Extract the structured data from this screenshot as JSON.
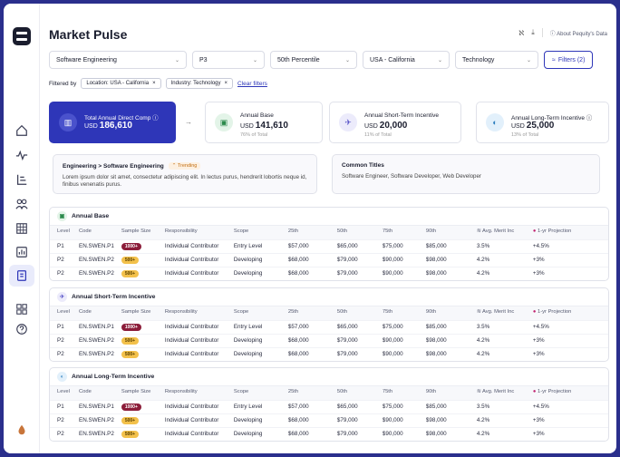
{
  "app": {
    "title": "Market Pulse"
  },
  "header": {
    "about_label": "About Pequity's Data"
  },
  "colors": {
    "accent": "#2e36b8",
    "frame": "#2a2f8c"
  },
  "filters": {
    "job": "Software Engineering",
    "level": "P3",
    "percentile": "50th Percentile",
    "location": "USA - California",
    "industry": "Technology",
    "button": "Filters (2)"
  },
  "filtered_by": {
    "label": "Filtered by",
    "chips": [
      "Location: USA - California",
      "Industry: Technology"
    ],
    "clear": "Clear filters"
  },
  "kpis": [
    {
      "label": "Total Annual Direct Comp",
      "currency": "USD",
      "value": "186,610",
      "pct": ""
    },
    {
      "label": "Annual Base",
      "currency": "USD",
      "value": "141,610",
      "pct": "76% of Total"
    },
    {
      "label": "Annual Short-Term Incentive",
      "currency": "USD",
      "value": "20,000",
      "pct": "11% of Total"
    },
    {
      "label": "Annual Long-Term Incentive",
      "currency": "USD",
      "value": "25,000",
      "pct": "13% of Total"
    }
  ],
  "info": {
    "path": "Engineering > Software Engineering",
    "trending": "Trending",
    "text": "Lorem ipsum dolor sit amet, consectetur adipiscing elit. In lectus purus, hendrerit lobortis neque id, finibus venenatis purus.",
    "common_title": "Common Titles",
    "common_text": "Software Engineer, Software Developer, Web Developer"
  },
  "columns": [
    "Level",
    "Code",
    "Sample Size",
    "Responsibility",
    "Scope",
    "25th",
    "50th",
    "75th",
    "90th",
    "Avg. Merit Inc",
    "1-yr Projection"
  ],
  "sections": [
    {
      "title": "Annual Base",
      "rows": [
        [
          "P1",
          "EN.SWEN.P1",
          "1000+",
          "Individual Contributor",
          "Entry Level",
          "$57,000",
          "$65,000",
          "$75,000",
          "$85,000",
          "3.5%",
          "+4.5%"
        ],
        [
          "P2",
          "EN.SWEN.P2",
          "500+",
          "Individual Contributor",
          "Developing",
          "$68,000",
          "$79,000",
          "$90,000",
          "$98,000",
          "4.2%",
          "+3%"
        ],
        [
          "P2",
          "EN.SWEN.P2",
          "500+",
          "Individual Contributor",
          "Developing",
          "$68,000",
          "$79,000",
          "$90,000",
          "$98,000",
          "4.2%",
          "+3%"
        ]
      ]
    },
    {
      "title": "Annual Short-Term Incentive",
      "rows": [
        [
          "P1",
          "EN.SWEN.P1",
          "1000+",
          "Individual Contributor",
          "Entry Level",
          "$57,000",
          "$65,000",
          "$75,000",
          "$85,000",
          "3.5%",
          "+4.5%"
        ],
        [
          "P2",
          "EN.SWEN.P2",
          "500+",
          "Individual Contributor",
          "Developing",
          "$68,000",
          "$79,000",
          "$90,000",
          "$98,000",
          "4.2%",
          "+3%"
        ],
        [
          "P2",
          "EN.SWEN.P2",
          "500+",
          "Individual Contributor",
          "Developing",
          "$68,000",
          "$79,000",
          "$90,000",
          "$98,000",
          "4.2%",
          "+3%"
        ]
      ]
    },
    {
      "title": "Annual Long-Term Incentive",
      "rows": [
        [
          "P1",
          "EN.SWEN.P1",
          "1000+",
          "Individual Contributor",
          "Entry Level",
          "$57,000",
          "$65,000",
          "$75,000",
          "$85,000",
          "3.5%",
          "+4.5%"
        ],
        [
          "P2",
          "EN.SWEN.P2",
          "500+",
          "Individual Contributor",
          "Developing",
          "$68,000",
          "$79,000",
          "$90,000",
          "$98,000",
          "4.2%",
          "+3%"
        ],
        [
          "P2",
          "EN.SWEN.P2",
          "500+",
          "Individual Contributor",
          "Developing",
          "$68,000",
          "$79,000",
          "$90,000",
          "$98,000",
          "4.2%",
          "+3%"
        ]
      ]
    }
  ]
}
